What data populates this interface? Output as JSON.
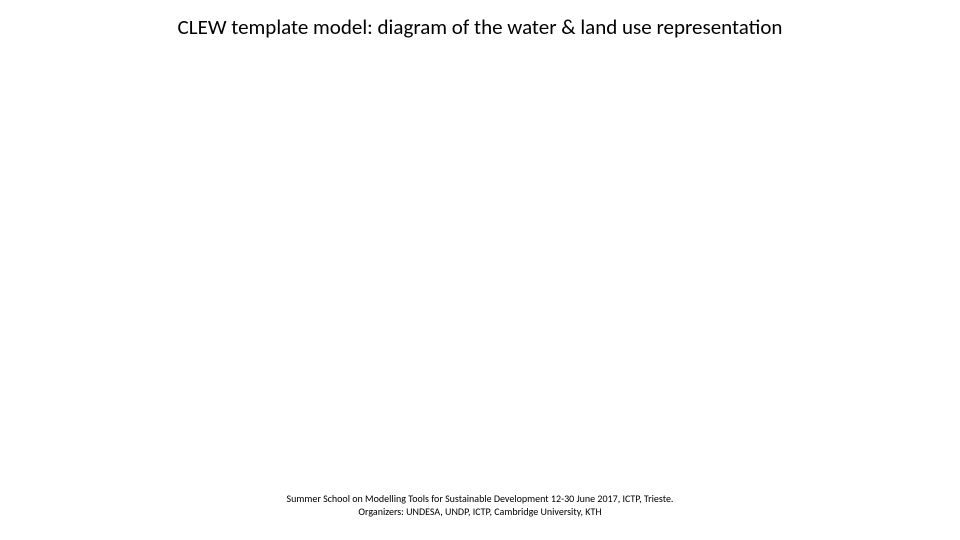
{
  "slide": {
    "title": "CLEW template model: diagram of the water & land use representation",
    "title_fontsize": 21,
    "title_color": "#000000",
    "background_color": "#ffffff"
  },
  "footer": {
    "line1": "Summer School on Modelling Tools for Sustainable Development 12-30 June 2017, ICTP, Trieste.",
    "line2": "Organizers: UNDESA, UNDP, ICTP, Cambridge University, KTH",
    "fontsize": 10,
    "color": "#000000"
  }
}
